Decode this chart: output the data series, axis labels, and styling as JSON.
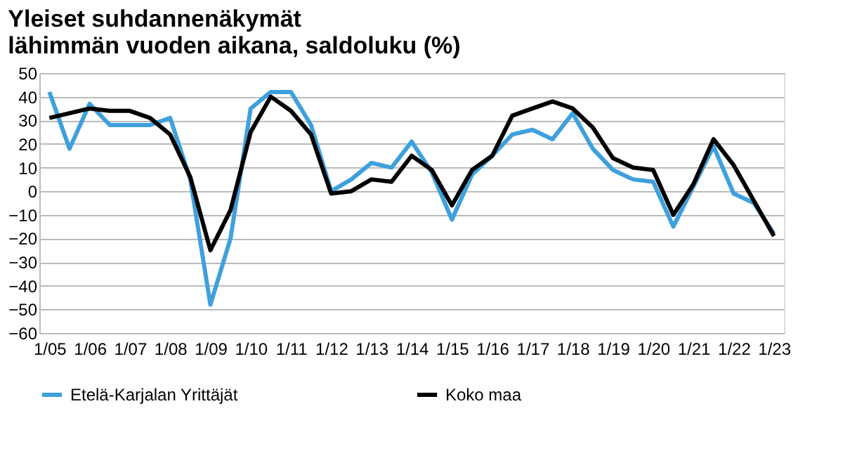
{
  "chart_data": {
    "type": "line",
    "title": "Yleiset suhdannenäkymät\nlähimmän vuoden aikana, saldoluku (%)",
    "categories": [
      "1/05",
      null,
      "1/06",
      null,
      "1/07",
      null,
      "1/08",
      null,
      "1/09",
      null,
      "1/10",
      null,
      "1/11",
      null,
      "1/12",
      null,
      "1/13",
      null,
      "1/14",
      null,
      "1/15",
      null,
      "1/16",
      null,
      "1/17",
      null,
      "1/18",
      null,
      "1/19",
      null,
      "1/20",
      null,
      "1/21",
      null,
      "1/22",
      null,
      "1/23"
    ],
    "series": [
      {
        "name": "Etelä-Karjalan Yrittäjät",
        "color": "#3ea0dc",
        "values": [
          42,
          18,
          37,
          28,
          28,
          28,
          31,
          5,
          -48,
          -20,
          35,
          42,
          42,
          28,
          0,
          5,
          12,
          10,
          21,
          8,
          -12,
          7,
          15,
          24,
          26,
          22,
          33,
          18,
          9,
          5,
          4,
          -15,
          2,
          19,
          -1,
          -5,
          -18
        ]
      },
      {
        "name": "Koko maa",
        "color": "#000000",
        "values": [
          31,
          33,
          35,
          34,
          34,
          31,
          24,
          6,
          -25,
          -8,
          25,
          40,
          34,
          24,
          -1,
          0,
          5,
          4,
          15,
          9,
          -6,
          9,
          15,
          32,
          35,
          38,
          35,
          27,
          14,
          10,
          9,
          -10,
          3,
          22,
          11,
          -4,
          -19
        ]
      }
    ],
    "ylim": [
      -60,
      50
    ],
    "yticks": [
      -60,
      -50,
      -40,
      -30,
      -20,
      -10,
      0,
      10,
      20,
      30,
      40,
      50
    ],
    "grid": "y",
    "legend": "bottom",
    "marker": "none",
    "line_style": "solid"
  }
}
